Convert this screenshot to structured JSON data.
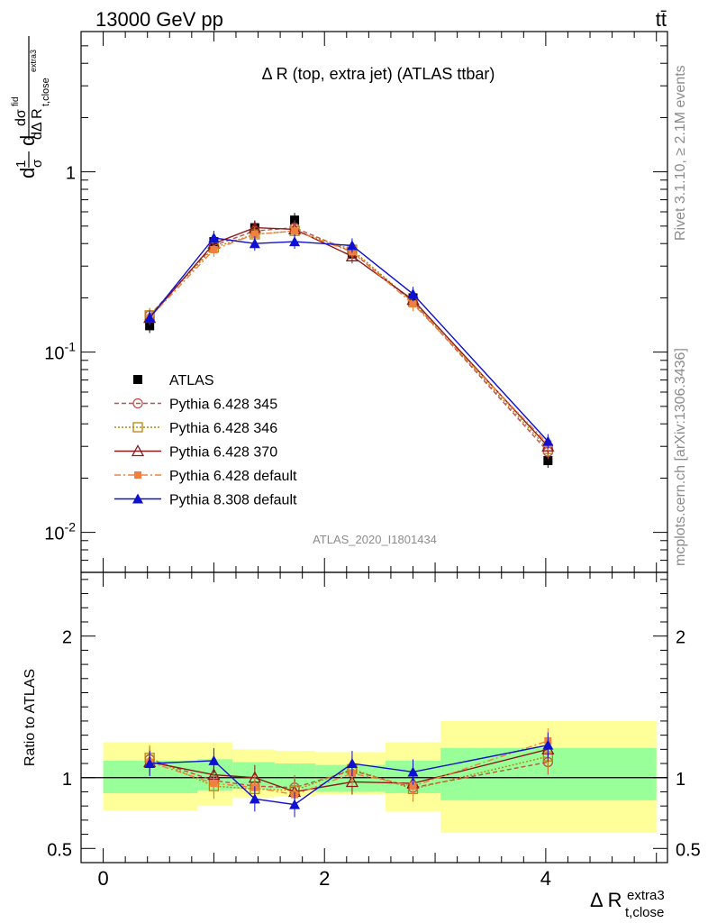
{
  "header": {
    "energy": "13000 GeV pp",
    "process": "tt̄"
  },
  "side": {
    "rivet": "Rivet 3.1.10, ≥ 2.1M events",
    "mcplots": "mcplots.cern.ch [arXiv:1306.3436]"
  },
  "chart_data": [
    {
      "type": "line",
      "title": "Δ R (top, extra jet) (ATLAS ttbar)",
      "analysis": "ATLAS_2020_I1801434",
      "xlabel": "Δ R t,close extra3",
      "ylabel": "dσ/dΔR normalized",
      "yscale": "log",
      "xlim": [
        -0.2,
        5.1
      ],
      "ylim": [
        0.006,
        6
      ],
      "ytick_labels": [
        "10^-2",
        "10^-1",
        "1"
      ],
      "x": [
        0.42,
        1.0,
        1.37,
        1.73,
        2.25,
        2.8,
        4.02
      ],
      "legend_position": "lower-left",
      "series": [
        {
          "name": "ATLAS",
          "color": "#000000",
          "marker": "square-filled",
          "values": [
            0.14,
            0.41,
            0.49,
            0.54,
            0.35,
            0.2,
            0.025
          ]
        },
        {
          "name": "Pythia 6.428 345",
          "color": "#c0504d",
          "marker": "circle-open",
          "dash": "5,3",
          "values": [
            0.16,
            0.39,
            0.47,
            0.49,
            0.36,
            0.19,
            0.028
          ]
        },
        {
          "name": "Pythia 6.428 346",
          "color": "#b8860b",
          "marker": "square-open",
          "dash": "2,2",
          "values": [
            0.16,
            0.38,
            0.45,
            0.47,
            0.37,
            0.19,
            0.029
          ]
        },
        {
          "name": "Pythia 6.428 370",
          "color": "#8b1a1a",
          "marker": "triangle-open",
          "dash": "",
          "values": [
            0.155,
            0.4,
            0.49,
            0.48,
            0.34,
            0.195,
            0.03
          ]
        },
        {
          "name": "Pythia 6.428 default",
          "color": "#f08040",
          "marker": "square-filled-small",
          "dash": "7,3,2,3",
          "values": [
            0.155,
            0.37,
            0.45,
            0.47,
            0.36,
            0.185,
            0.031
          ]
        },
        {
          "name": "Pythia 8.308 default",
          "color": "#1010d0",
          "marker": "triangle-filled",
          "dash": "",
          "values": [
            0.155,
            0.43,
            0.4,
            0.41,
            0.39,
            0.21,
            0.032
          ]
        }
      ]
    },
    {
      "type": "line",
      "ylabel": "Ratio to ATLAS",
      "xlabel": "Δ R t,close extra3",
      "xlim": [
        -0.2,
        5.1
      ],
      "ylim": [
        0.4,
        2.45
      ],
      "yticks": [
        0.5,
        1,
        2
      ],
      "ytick_labels": [
        "0.5",
        "1",
        "2"
      ],
      "xticks": [
        0,
        2,
        4
      ],
      "xtick_labels": [
        "0",
        "2",
        "4"
      ],
      "bins": [
        [
          0,
          0.85
        ],
        [
          0.85,
          1.17
        ],
        [
          1.17,
          1.55
        ],
        [
          1.55,
          1.92
        ],
        [
          1.92,
          2.55
        ],
        [
          2.55,
          3.05
        ],
        [
          3.05,
          5.0
        ]
      ],
      "band_yellow": [
        [
          0.77,
          1.25
        ],
        [
          0.8,
          1.25
        ],
        [
          0.86,
          1.2
        ],
        [
          0.87,
          1.19
        ],
        [
          0.88,
          1.18
        ],
        [
          0.76,
          1.25
        ],
        [
          0.61,
          1.4
        ]
      ],
      "band_green": [
        [
          0.89,
          1.12
        ],
        [
          0.91,
          1.13
        ],
        [
          0.92,
          1.11
        ],
        [
          0.92,
          1.1
        ],
        [
          0.9,
          1.09
        ],
        [
          0.89,
          1.12
        ],
        [
          0.84,
          1.21
        ]
      ],
      "x": [
        0.42,
        1.0,
        1.37,
        1.73,
        2.25,
        2.8,
        4.02
      ],
      "series": [
        {
          "name": "Pythia 6.428 345",
          "color": "#c0504d",
          "values": [
            1.13,
            0.98,
            0.94,
            0.93,
            1.05,
            0.93,
            1.11
          ]
        },
        {
          "name": "Pythia 6.428 346",
          "color": "#b8860b",
          "values": [
            1.14,
            0.94,
            0.92,
            0.91,
            1.06,
            0.92,
            1.15
          ]
        },
        {
          "name": "Pythia 6.428 370",
          "color": "#8b1a1a",
          "values": [
            1.11,
            1.02,
            1.0,
            0.9,
            0.97,
            0.96,
            1.2
          ]
        },
        {
          "name": "Pythia 6.428 default",
          "color": "#f08040",
          "values": [
            1.11,
            0.96,
            0.93,
            0.88,
            1.03,
            0.94,
            1.26
          ]
        },
        {
          "name": "Pythia 8.308 default",
          "color": "#1010d0",
          "values": [
            1.1,
            1.12,
            0.85,
            0.81,
            1.1,
            1.04,
            1.23
          ]
        }
      ]
    }
  ]
}
